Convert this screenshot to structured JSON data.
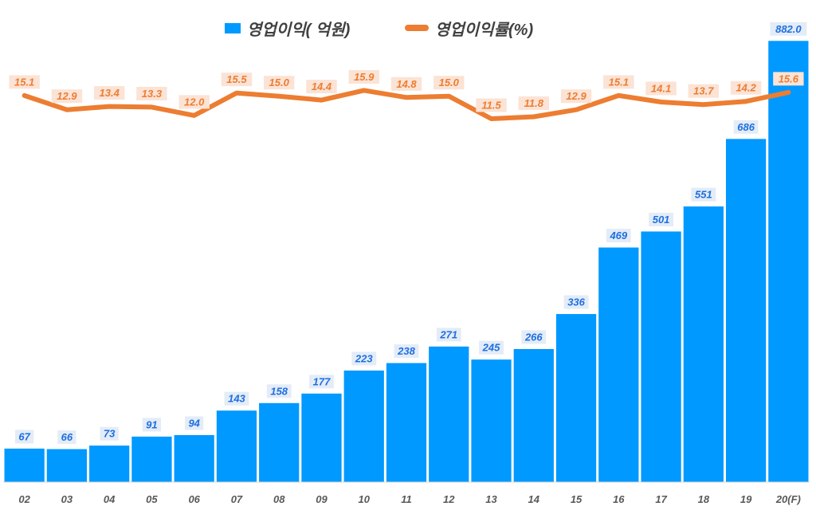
{
  "chart_data": {
    "type": "bar",
    "title": "",
    "xlabel": "",
    "ylabel": "",
    "legend_position": "top-center",
    "categories": [
      "02",
      "03",
      "04",
      "05",
      "06",
      "07",
      "08",
      "09",
      "10",
      "11",
      "12",
      "13",
      "14",
      "15",
      "16",
      "17",
      "18",
      "19",
      "20(F)"
    ],
    "series": [
      {
        "name": "영업이익( 억원)",
        "kind": "bar",
        "color": "#0099FF",
        "label_color": "#1F6FE0",
        "values": [
          67,
          66,
          73,
          91,
          94,
          143,
          158,
          177,
          223,
          238,
          271,
          245,
          266,
          336,
          469,
          501,
          551,
          686,
          882.0
        ],
        "value_labels": [
          "67",
          "66",
          "73",
          "91",
          "94",
          "143",
          "158",
          "177",
          "223",
          "238",
          "271",
          "245",
          "266",
          "336",
          "469",
          "501",
          "551",
          "686",
          "882.0"
        ]
      },
      {
        "name": "영업이익률(%)",
        "kind": "line",
        "color": "#ED7D31",
        "label_color": "#ED7D31",
        "values": [
          15.1,
          12.9,
          13.4,
          13.3,
          12.0,
          15.5,
          15.0,
          14.4,
          15.9,
          14.8,
          15.0,
          11.5,
          11.8,
          12.9,
          15.1,
          14.1,
          13.7,
          14.2,
          15.6
        ],
        "value_labels": [
          "15.1",
          "12.9",
          "13.4",
          "13.3",
          "12.0",
          "15.5",
          "15.0",
          "14.4",
          "15.9",
          "14.8",
          "15.0",
          "11.5",
          "11.8",
          "12.9",
          "15.1",
          "14.1",
          "13.7",
          "14.2",
          "15.6"
        ]
      }
    ],
    "y_bar_range": [
      0,
      900
    ],
    "y_line_range": [
      -45,
      25
    ],
    "grid": false
  }
}
